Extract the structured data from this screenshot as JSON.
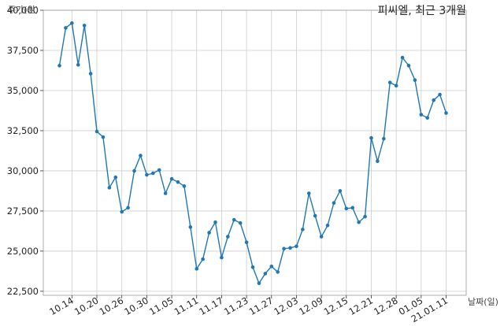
{
  "chart_data": {
    "type": "line",
    "title": "피씨엘, 최근 3개월",
    "xlabel": "날짜(일)",
    "ylabel": "주가(원)",
    "ylim": [
      22250,
      40000
    ],
    "yticks": [
      "22,500",
      "25,000",
      "27,500",
      "30,000",
      "32,500",
      "35,000",
      "37,500",
      "40,000"
    ],
    "ytick_values": [
      22500,
      25000,
      27500,
      30000,
      32500,
      35000,
      37500,
      40000
    ],
    "xtick_labels": [
      "10.14",
      "10.20",
      "10.26",
      "10.30",
      "11.05",
      "11.11",
      "11.17",
      "11.23",
      "11.27",
      "12.03",
      "12.09",
      "12.15",
      "12.21",
      "12.28",
      "01.05",
      "21.01.11"
    ],
    "xtick_index": [
      2,
      6,
      10,
      14,
      18,
      22,
      26,
      30,
      34,
      38,
      42,
      46,
      50,
      54,
      58,
      62
    ],
    "grid": true,
    "colors": {
      "line": "#1f77b4",
      "grid": "#cccccc",
      "axis": "#333333"
    },
    "series": [
      {
        "values": [
          36550,
          38900,
          39200,
          36600,
          39050,
          36050,
          32450,
          32100,
          28950,
          29600,
          27450,
          27700,
          30000,
          30950,
          29750,
          29850,
          30050,
          28600,
          29500,
          29300,
          29050,
          26500,
          23900,
          24500,
          26150,
          26800,
          24600,
          25900,
          26950,
          26750,
          25550,
          24000,
          23000,
          23600,
          24050,
          23700,
          25150,
          25200,
          25300,
          26350,
          28600,
          27200,
          25900,
          26600,
          28000,
          28750,
          27650,
          27700,
          26800,
          27150,
          32050,
          30600,
          32000,
          35500,
          35300,
          37050,
          36550,
          35650,
          33500,
          33300,
          34400,
          34750,
          33600
        ]
      }
    ]
  }
}
